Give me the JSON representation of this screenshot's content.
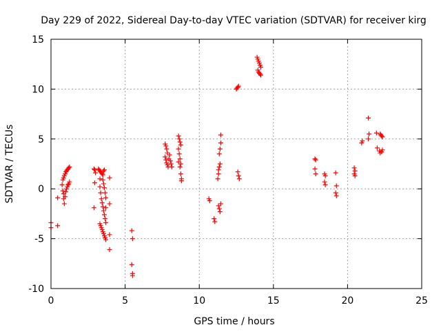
{
  "chart_data": {
    "type": "scatter",
    "title": "Day 229 of 2022, Sidereal Day-to-day VTEC variation (SDTVAR) for receiver kirg",
    "xlabel": "GPS time / hours",
    "ylabel": "SDTVAR / TECUs",
    "xlim": [
      0,
      25
    ],
    "ylim": [
      -10,
      15
    ],
    "xticks": [
      0,
      5,
      10,
      15,
      20,
      25
    ],
    "yticks": [
      -10,
      -5,
      0,
      5,
      10,
      15
    ],
    "grid": true,
    "marker": "+",
    "marker_color": "#ff0000",
    "series": [
      {
        "name": "SDTVAR",
        "points": [
          [
            0.0,
            -3.4
          ],
          [
            0.0,
            -3.9
          ],
          [
            0.45,
            -3.7
          ],
          [
            0.45,
            -0.9
          ],
          [
            0.75,
            0.4
          ],
          [
            0.8,
            0.9
          ],
          [
            0.85,
            1.1
          ],
          [
            0.9,
            1.3
          ],
          [
            0.95,
            1.5
          ],
          [
            1.0,
            1.7
          ],
          [
            1.05,
            1.8
          ],
          [
            1.1,
            1.9
          ],
          [
            1.15,
            2.0
          ],
          [
            1.2,
            2.1
          ],
          [
            1.25,
            2.2
          ],
          [
            0.8,
            -0.2
          ],
          [
            0.85,
            -0.5
          ],
          [
            0.85,
            -1.0
          ],
          [
            0.9,
            -1.5
          ],
          [
            0.95,
            -0.8
          ],
          [
            1.0,
            -0.3
          ],
          [
            1.05,
            0.0
          ],
          [
            1.1,
            0.2
          ],
          [
            1.15,
            0.4
          ],
          [
            1.2,
            0.5
          ],
          [
            1.25,
            0.7
          ],
          [
            2.9,
            2.0
          ],
          [
            2.95,
            1.9
          ],
          [
            3.0,
            1.6
          ],
          [
            2.95,
            0.6
          ],
          [
            2.9,
            -1.9
          ],
          [
            3.2,
            2.0
          ],
          [
            3.25,
            1.9
          ],
          [
            3.3,
            1.8
          ],
          [
            3.35,
            1.7
          ],
          [
            3.4,
            1.6
          ],
          [
            3.45,
            1.5
          ],
          [
            3.5,
            1.4
          ],
          [
            3.55,
            1.8
          ],
          [
            3.6,
            1.9
          ],
          [
            3.3,
            1.0
          ],
          [
            3.3,
            0.2
          ],
          [
            3.35,
            -0.4
          ],
          [
            3.4,
            -1.0
          ],
          [
            3.45,
            -1.4
          ],
          [
            3.5,
            -1.8
          ],
          [
            3.55,
            -2.2
          ],
          [
            3.6,
            -2.6
          ],
          [
            3.65,
            -3.0
          ],
          [
            3.7,
            -3.4
          ],
          [
            3.3,
            -3.5
          ],
          [
            3.35,
            -3.7
          ],
          [
            3.4,
            -3.9
          ],
          [
            3.45,
            -4.1
          ],
          [
            3.5,
            -4.3
          ],
          [
            3.55,
            -4.5
          ],
          [
            3.6,
            -4.7
          ],
          [
            3.65,
            -4.9
          ],
          [
            3.7,
            -5.1
          ],
          [
            3.5,
            0.9
          ],
          [
            3.55,
            0.5
          ],
          [
            3.6,
            0.1
          ],
          [
            3.65,
            -0.4
          ],
          [
            3.7,
            -0.9
          ],
          [
            3.7,
            -1.9
          ],
          [
            3.95,
            1.1
          ],
          [
            3.95,
            -1.5
          ],
          [
            3.95,
            -4.6
          ],
          [
            3.95,
            -6.1
          ],
          [
            5.45,
            -4.2
          ],
          [
            5.5,
            -5.0
          ],
          [
            5.45,
            -7.6
          ],
          [
            5.5,
            -8.5
          ],
          [
            5.5,
            -8.7
          ],
          [
            7.7,
            4.5
          ],
          [
            7.75,
            4.3
          ],
          [
            7.8,
            4.0
          ],
          [
            7.85,
            3.6
          ],
          [
            7.7,
            3.2
          ],
          [
            7.75,
            2.9
          ],
          [
            7.8,
            2.6
          ],
          [
            7.85,
            2.4
          ],
          [
            7.9,
            2.2
          ],
          [
            7.95,
            3.0
          ],
          [
            8.0,
            3.4
          ],
          [
            8.05,
            2.8
          ],
          [
            8.1,
            2.5
          ],
          [
            8.15,
            2.2
          ],
          [
            8.6,
            5.3
          ],
          [
            8.65,
            5.0
          ],
          [
            8.7,
            4.7
          ],
          [
            8.75,
            4.4
          ],
          [
            8.6,
            4.0
          ],
          [
            8.65,
            3.5
          ],
          [
            8.7,
            3.0
          ],
          [
            8.75,
            2.5
          ],
          [
            8.6,
            2.7
          ],
          [
            8.7,
            2.2
          ],
          [
            8.75,
            1.5
          ],
          [
            8.8,
            1.0
          ],
          [
            8.8,
            0.8
          ],
          [
            10.65,
            -1.0
          ],
          [
            10.7,
            -1.2
          ],
          [
            11.0,
            -3.0
          ],
          [
            11.05,
            -3.3
          ],
          [
            11.25,
            1.0
          ],
          [
            11.3,
            1.5
          ],
          [
            11.3,
            1.9
          ],
          [
            11.35,
            2.2
          ],
          [
            11.4,
            2.5
          ],
          [
            11.35,
            3.5
          ],
          [
            11.4,
            4.0
          ],
          [
            11.45,
            4.6
          ],
          [
            11.45,
            5.4
          ],
          [
            11.3,
            -1.7
          ],
          [
            11.35,
            -2.0
          ],
          [
            11.4,
            -2.3
          ],
          [
            11.45,
            -1.5
          ],
          [
            12.5,
            10.0
          ],
          [
            12.55,
            10.1
          ],
          [
            12.6,
            10.2
          ],
          [
            12.65,
            10.3
          ],
          [
            12.6,
            1.7
          ],
          [
            12.65,
            1.3
          ],
          [
            12.7,
            1.0
          ],
          [
            13.9,
            13.2
          ],
          [
            13.95,
            13.0
          ],
          [
            14.0,
            12.8
          ],
          [
            14.05,
            12.6
          ],
          [
            14.1,
            12.4
          ],
          [
            14.15,
            12.2
          ],
          [
            13.95,
            11.9
          ],
          [
            14.0,
            11.7
          ],
          [
            14.05,
            11.6
          ],
          [
            14.1,
            11.5
          ],
          [
            14.15,
            11.4
          ],
          [
            17.8,
            3.0
          ],
          [
            17.85,
            2.9
          ],
          [
            17.8,
            2.0
          ],
          [
            17.85,
            1.5
          ],
          [
            18.45,
            1.5
          ],
          [
            18.5,
            1.3
          ],
          [
            18.45,
            0.7
          ],
          [
            18.5,
            0.4
          ],
          [
            19.2,
            1.6
          ],
          [
            19.25,
            0.3
          ],
          [
            19.2,
            -0.4
          ],
          [
            19.25,
            -0.7
          ],
          [
            20.45,
            2.1
          ],
          [
            20.5,
            1.8
          ],
          [
            20.45,
            1.5
          ],
          [
            20.5,
            1.3
          ],
          [
            20.95,
            4.6
          ],
          [
            21.0,
            4.8
          ],
          [
            21.4,
            7.1
          ],
          [
            21.45,
            5.5
          ],
          [
            21.4,
            5.0
          ],
          [
            21.95,
            5.6
          ],
          [
            22.0,
            4.1
          ],
          [
            22.2,
            5.5
          ],
          [
            22.25,
            5.4
          ],
          [
            22.3,
            5.3
          ],
          [
            22.35,
            5.2
          ],
          [
            22.15,
            3.8
          ],
          [
            22.2,
            3.6
          ],
          [
            22.3,
            3.7
          ],
          [
            22.35,
            3.9
          ]
        ]
      }
    ]
  }
}
